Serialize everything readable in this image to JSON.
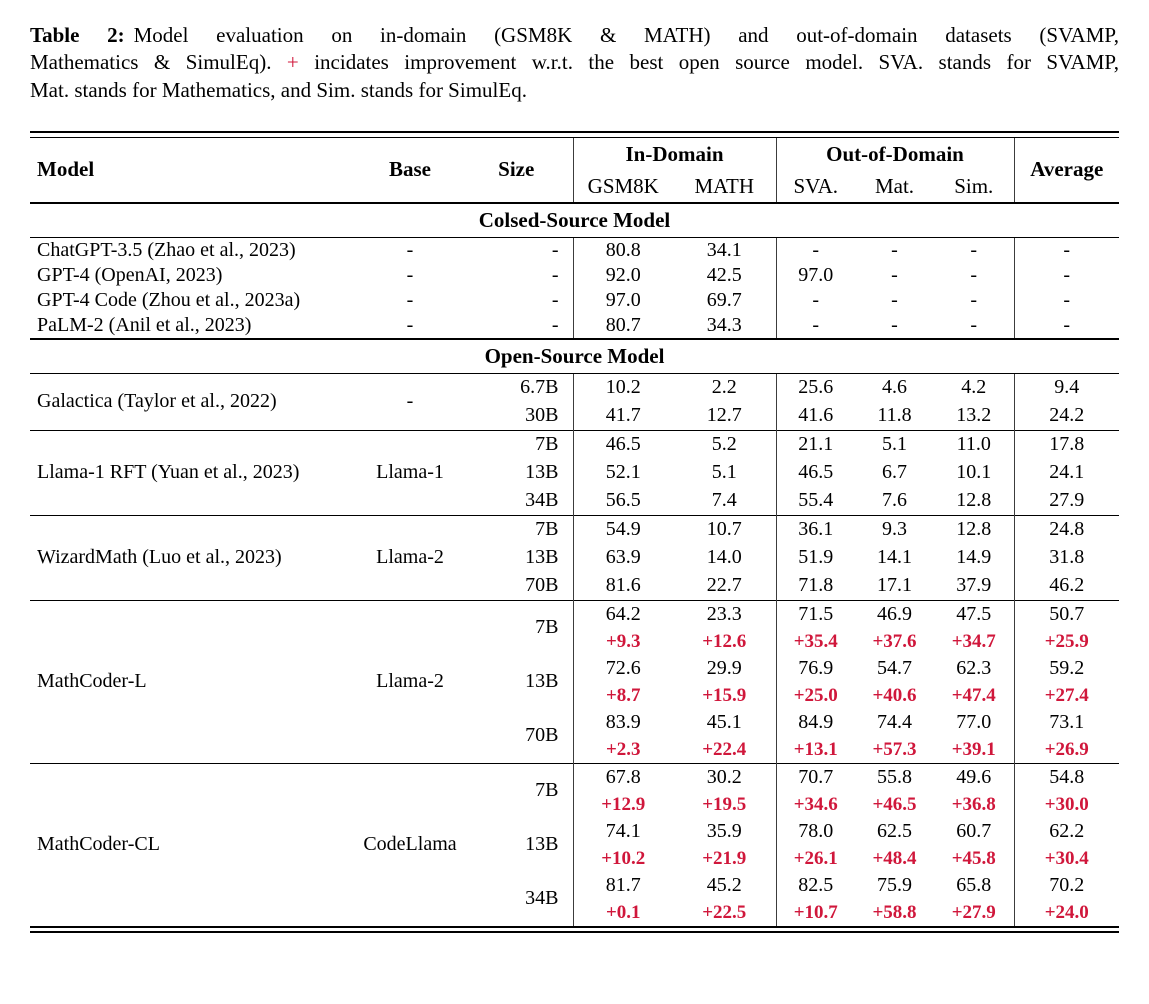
{
  "colors": {
    "delta_red": "#d0173b"
  },
  "caption": {
    "label": "Table 2:",
    "line1": "Model evaluation on in-domain (GSM8K & MATH) and out-of-domain datasets (SVAMP,",
    "line2a": "Mathematics & SimulEq). ",
    "plus": "+",
    "line2b": " incidates improvement w.r.t. the best open source model. SVA. stands for SVAMP,",
    "line3": "Mat. stands for Mathematics, and Sim. stands for SimulEq."
  },
  "table": {
    "header": {
      "model": "Model",
      "base": "Base",
      "size": "Size",
      "in_domain": "In-Domain",
      "out_of_domain": "Out-of-Domain",
      "gsm8k": "GSM8K",
      "math": "MATH",
      "sva": "SVA.",
      "mat": "Mat.",
      "sim": "Sim.",
      "average": "Average"
    },
    "sections": [
      {
        "title": "Colsed-Source Model",
        "groups": [
          {
            "model": "ChatGPT-3.5 (Zhao et al., 2023)",
            "base": "-",
            "rows": [
              {
                "size": "-",
                "values": [
                  "80.8",
                  "34.1",
                  "-",
                  "-",
                  "-",
                  "-"
                ]
              }
            ]
          },
          {
            "model": "GPT-4 (OpenAI, 2023)",
            "base": "-",
            "rows": [
              {
                "size": "-",
                "values": [
                  "92.0",
                  "42.5",
                  "97.0",
                  "-",
                  "-",
                  "-"
                ]
              }
            ]
          },
          {
            "model": "GPT-4 Code (Zhou et al., 2023a)",
            "base": "-",
            "rows": [
              {
                "size": "-",
                "values": [
                  "97.0",
                  "69.7",
                  "-",
                  "-",
                  "-",
                  "-"
                ]
              }
            ]
          },
          {
            "model": "PaLM-2 (Anil et al., 2023)",
            "base": "-",
            "rows": [
              {
                "size": "-",
                "values": [
                  "80.7",
                  "34.3",
                  "-",
                  "-",
                  "-",
                  "-"
                ]
              }
            ]
          }
        ]
      },
      {
        "title": "Open-Source Model",
        "groups": [
          {
            "model": "Galactica (Taylor et al., 2022)",
            "base": "-",
            "rows": [
              {
                "size": "6.7B",
                "values": [
                  "10.2",
                  "2.2",
                  "25.6",
                  "4.6",
                  "4.2",
                  "9.4"
                ]
              },
              {
                "size": "30B",
                "values": [
                  "41.7",
                  "12.7",
                  "41.6",
                  "11.8",
                  "13.2",
                  "24.2"
                ]
              }
            ]
          },
          {
            "model": "Llama-1 RFT (Yuan et al., 2023)",
            "base": "Llama-1",
            "rows": [
              {
                "size": "7B",
                "values": [
                  "46.5",
                  "5.2",
                  "21.1",
                  "5.1",
                  "11.0",
                  "17.8"
                ]
              },
              {
                "size": "13B",
                "values": [
                  "52.1",
                  "5.1",
                  "46.5",
                  "6.7",
                  "10.1",
                  "24.1"
                ]
              },
              {
                "size": "34B",
                "values": [
                  "56.5",
                  "7.4",
                  "55.4",
                  "7.6",
                  "12.8",
                  "27.9"
                ]
              }
            ]
          },
          {
            "model": "WizardMath (Luo et al., 2023)",
            "base": "Llama-2",
            "rows": [
              {
                "size": "7B",
                "values": [
                  "54.9",
                  "10.7",
                  "36.1",
                  "9.3",
                  "12.8",
                  "24.8"
                ]
              },
              {
                "size": "13B",
                "values": [
                  "63.9",
                  "14.0",
                  "51.9",
                  "14.1",
                  "14.9",
                  "31.8"
                ]
              },
              {
                "size": "70B",
                "values": [
                  "81.6",
                  "22.7",
                  "71.8",
                  "17.1",
                  "37.9",
                  "46.2"
                ]
              }
            ]
          },
          {
            "model": "MathCoder-L",
            "base": "Llama-2",
            "rows": [
              {
                "size": "7B",
                "values": [
                  "64.2",
                  "23.3",
                  "71.5",
                  "46.9",
                  "47.5",
                  "50.7"
                ],
                "deltas": [
                  "+9.3",
                  "+12.6",
                  "+35.4",
                  "+37.6",
                  "+34.7",
                  "+25.9"
                ]
              },
              {
                "size": "13B",
                "values": [
                  "72.6",
                  "29.9",
                  "76.9",
                  "54.7",
                  "62.3",
                  "59.2"
                ],
                "deltas": [
                  "+8.7",
                  "+15.9",
                  "+25.0",
                  "+40.6",
                  "+47.4",
                  "+27.4"
                ]
              },
              {
                "size": "70B",
                "values": [
                  "83.9",
                  "45.1",
                  "84.9",
                  "74.4",
                  "77.0",
                  "73.1"
                ],
                "deltas": [
                  "+2.3",
                  "+22.4",
                  "+13.1",
                  "+57.3",
                  "+39.1",
                  "+26.9"
                ]
              }
            ]
          },
          {
            "model": "MathCoder-CL",
            "base": "CodeLlama",
            "rows": [
              {
                "size": "7B",
                "values": [
                  "67.8",
                  "30.2",
                  "70.7",
                  "55.8",
                  "49.6",
                  "54.8"
                ],
                "deltas": [
                  "+12.9",
                  "+19.5",
                  "+34.6",
                  "+46.5",
                  "+36.8",
                  "+30.0"
                ]
              },
              {
                "size": "13B",
                "values": [
                  "74.1",
                  "35.9",
                  "78.0",
                  "62.5",
                  "60.7",
                  "62.2"
                ],
                "deltas": [
                  "+10.2",
                  "+21.9",
                  "+26.1",
                  "+48.4",
                  "+45.8",
                  "+30.4"
                ]
              },
              {
                "size": "34B",
                "values": [
                  "81.7",
                  "45.2",
                  "82.5",
                  "75.9",
                  "65.8",
                  "70.2"
                ],
                "deltas": [
                  "+0.1",
                  "+22.5",
                  "+10.7",
                  "+58.8",
                  "+27.9",
                  "+24.0"
                ]
              }
            ]
          }
        ]
      }
    ]
  }
}
